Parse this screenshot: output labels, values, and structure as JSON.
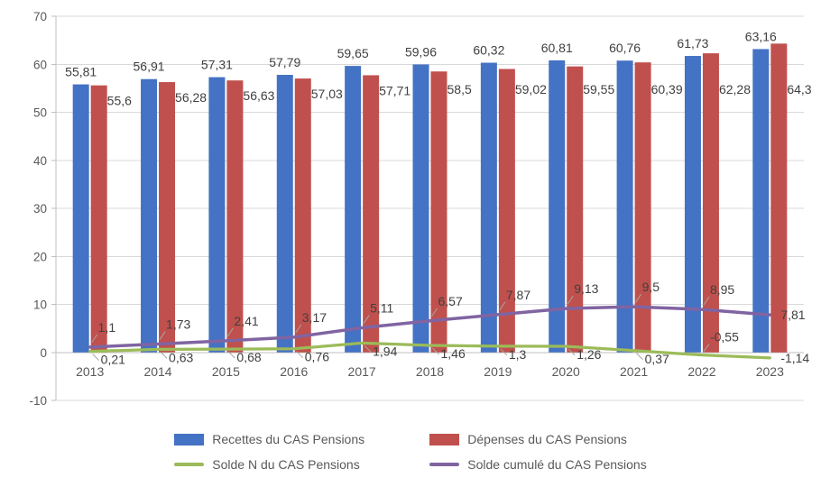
{
  "chart_data": {
    "type": "bar+line",
    "categories": [
      "2013",
      "2014",
      "2015",
      "2016",
      "2017",
      "2018",
      "2019",
      "2020",
      "2021",
      "2022",
      "2023"
    ],
    "series": [
      {
        "name": "Recettes du CAS Pensions",
        "kind": "bar",
        "color": "#4472C4",
        "values": [
          55.81,
          56.91,
          57.31,
          57.79,
          59.65,
          59.96,
          60.32,
          60.81,
          60.76,
          61.73,
          63.16
        ],
        "labels": [
          "55,81",
          "56,91",
          "57,31",
          "57,79",
          "59,65",
          "59,96",
          "60,32",
          "60,81",
          "60,76",
          "61,73",
          "63,16"
        ]
      },
      {
        "name": "Dépenses du CAS Pensions",
        "kind": "bar",
        "color": "#C0504D",
        "values": [
          55.6,
          56.28,
          56.63,
          57.03,
          57.71,
          58.5,
          59.02,
          59.55,
          60.39,
          62.28,
          64.3
        ],
        "labels": [
          "55,6",
          "56,28",
          "56,63",
          "57,03",
          "57,71",
          "58,5",
          "59,02",
          "59,55",
          "60,39",
          "62,28",
          "64,3"
        ]
      },
      {
        "name": "Solde N du CAS Pensions",
        "kind": "line",
        "color": "#9BBB59",
        "values": [
          0.21,
          0.63,
          0.68,
          0.76,
          1.94,
          1.46,
          1.3,
          1.26,
          0.37,
          -0.55,
          -1.14
        ],
        "labels": [
          "0,21",
          "0,63",
          "0,68",
          "0,76",
          "1,94",
          "1,46",
          "1,3",
          "1,26",
          "0,37",
          "-0,55",
          "-1,14"
        ]
      },
      {
        "name": "Solde cumulé du CAS Pensions",
        "kind": "line",
        "color": "#8064A2",
        "values": [
          1.1,
          1.73,
          2.41,
          3.17,
          5.11,
          6.57,
          7.87,
          9.13,
          9.5,
          8.95,
          7.81
        ],
        "labels": [
          "1,1",
          "1,73",
          "2,41",
          "3,17",
          "5,11",
          "6,57",
          "7,87",
          "9,13",
          "9,5",
          "8,95",
          "7,81"
        ]
      }
    ],
    "y_axis": {
      "min": -10,
      "max": 70,
      "step": 10,
      "tick_labels": [
        "-10",
        "0",
        "10",
        "20",
        "30",
        "40",
        "50",
        "60",
        "70"
      ]
    },
    "x_axis": {
      "tick_labels": [
        "2013",
        "2014",
        "2015",
        "2016",
        "2017",
        "2018",
        "2019",
        "2020",
        "2021",
        "2022",
        "2023"
      ]
    },
    "grid": true,
    "legend_position": "bottom",
    "colors": {
      "grid": "#D9D9D9",
      "axis_line": "#BFBFBF",
      "axis_text": "#595959",
      "label_text": "#404040",
      "leader_line": "#A6A6A6",
      "background": "#FFFFFF"
    }
  }
}
